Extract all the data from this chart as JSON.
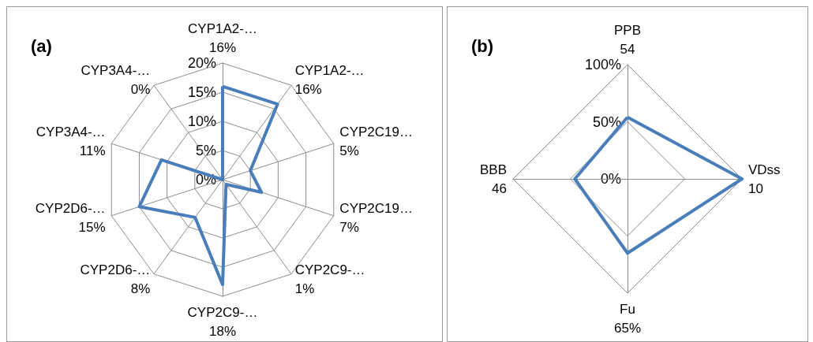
{
  "chart_data": [
    {
      "type": "radar",
      "title": "(a)",
      "categories": [
        "CYP1A2-… 16%",
        "CYP1A2-… 16%",
        "CYP2C19… 5%",
        "CYP2C19… 7%",
        "CYP2C9-… 1%",
        "CYP2C9-… 18%",
        "CYP2D6-… 8%",
        "CYP2D6-… 15%",
        "CYP3A4-… 11%",
        "CYP3A4-… 0%"
      ],
      "series": [
        {
          "color": "#4a7ebb",
          "values": [
            16,
            16,
            5,
            7,
            1,
            18,
            8,
            15,
            11,
            0
          ]
        }
      ],
      "ylim": [
        0,
        20
      ],
      "yticks": [
        {
          "value": 0,
          "label": "0%"
        },
        {
          "value": 5,
          "label": "5%"
        },
        {
          "value": 10,
          "label": "10%"
        },
        {
          "value": 15,
          "label": "15%"
        },
        {
          "value": 20,
          "label": "20%"
        }
      ],
      "grid": true
    },
    {
      "type": "radar",
      "title": "(b)",
      "categories": [
        "PPB 54",
        "VDss 10",
        "Fu 65%",
        "BBB 46"
      ],
      "series": [
        {
          "color": "#4a7ebb",
          "values": [
            54,
            100,
            65,
            46
          ]
        }
      ],
      "ylim": [
        0,
        100
      ],
      "yticks": [
        {
          "value": 0,
          "label": "0%"
        },
        {
          "value": 50,
          "label": "50%"
        },
        {
          "value": 100,
          "label": "100%"
        }
      ],
      "grid": true
    }
  ]
}
